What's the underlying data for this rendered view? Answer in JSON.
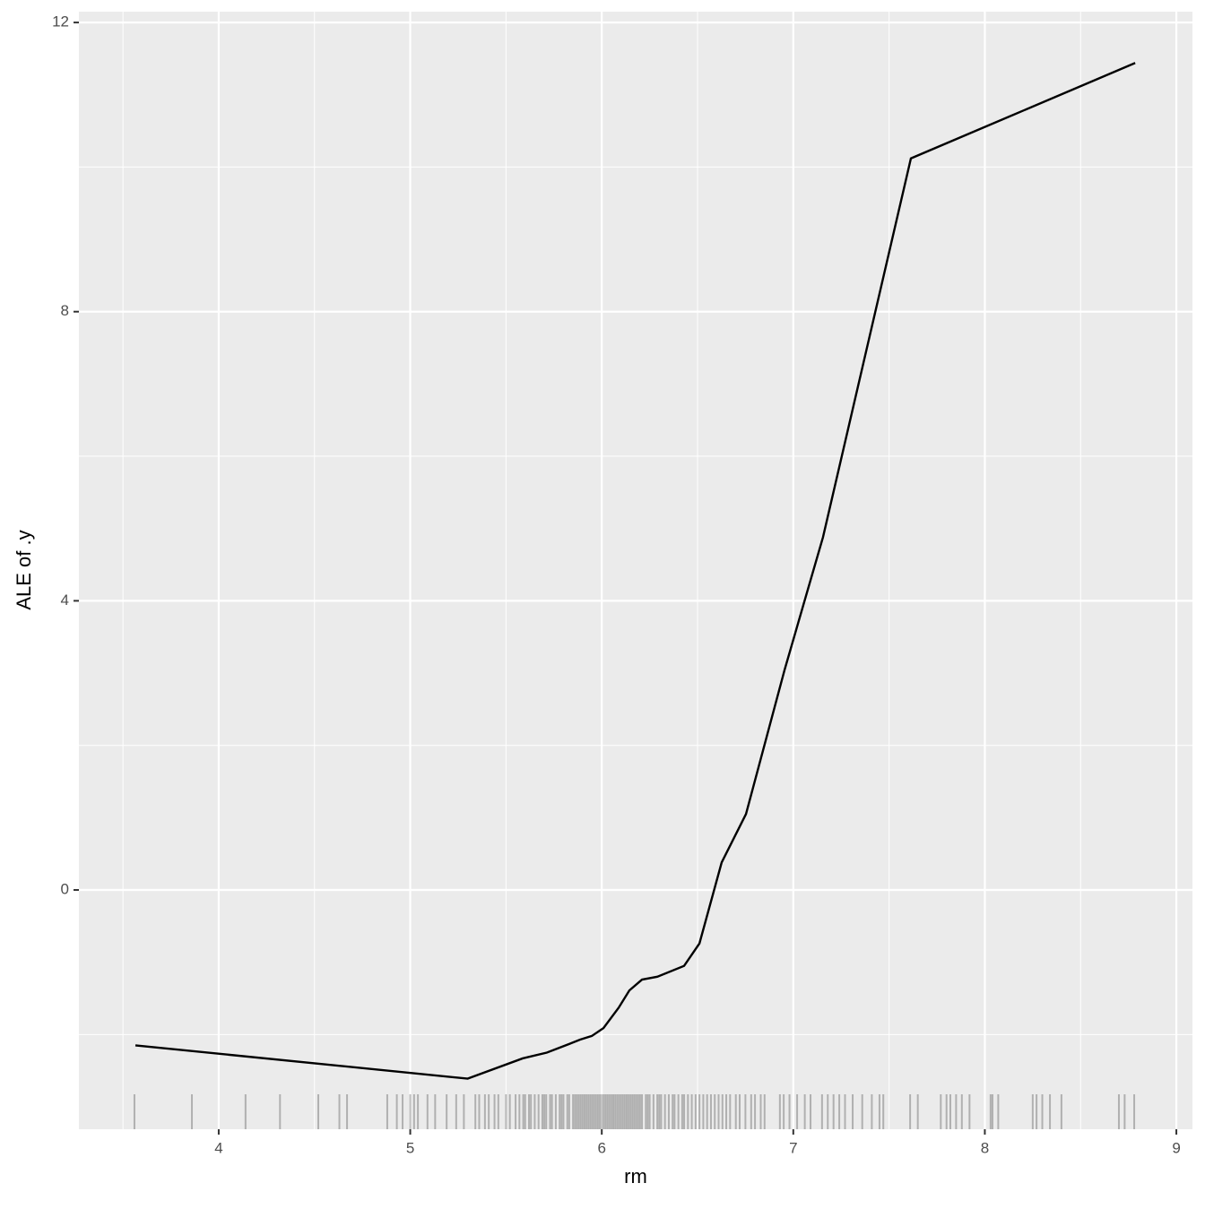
{
  "chart_data": {
    "type": "line",
    "x_label": "rm",
    "y_label": "ALE of .y",
    "x": [
      3.565,
      5.3,
      5.587,
      5.713,
      5.84,
      5.887,
      5.948,
      6.009,
      6.088,
      6.144,
      6.21,
      6.29,
      6.43,
      6.51,
      6.626,
      6.753,
      6.954,
      7.155,
      7.614,
      8.785
    ],
    "series": [
      {
        "color": "#000000",
        "values": [
          -2.15,
          -2.61,
          -2.33,
          -2.25,
          -2.12,
          -2.07,
          -2.02,
          -1.91,
          -1.63,
          -1.39,
          -1.24,
          -1.2,
          -1.05,
          -0.74,
          0.38,
          1.05,
          3.04,
          4.88,
          10.12,
          11.44
        ]
      }
    ],
    "rug": [
      3.56,
      3.86,
      4.14,
      4.32,
      4.52,
      4.63,
      4.67,
      4.88,
      4.93,
      4.96,
      5.0,
      5.02,
      5.04,
      5.09,
      5.13,
      5.19,
      5.24,
      5.28,
      5.34,
      5.36,
      5.39,
      5.41,
      5.44,
      5.46,
      5.5,
      5.52,
      5.55,
      5.57,
      5.59,
      5.6,
      5.62,
      5.63,
      5.65,
      5.67,
      5.69,
      5.7,
      5.71,
      5.73,
      5.74,
      5.76,
      5.78,
      5.79,
      5.8,
      5.82,
      5.83,
      5.85,
      5.86,
      5.87,
      5.88,
      5.89,
      5.9,
      5.91,
      5.92,
      5.93,
      5.94,
      5.95,
      5.96,
      5.97,
      5.98,
      5.99,
      6.0,
      6.01,
      6.02,
      6.03,
      6.04,
      6.05,
      6.06,
      6.07,
      6.08,
      6.09,
      6.1,
      6.11,
      6.12,
      6.13,
      6.14,
      6.15,
      6.16,
      6.17,
      6.18,
      6.19,
      6.2,
      6.21,
      6.23,
      6.24,
      6.25,
      6.27,
      6.29,
      6.3,
      6.31,
      6.33,
      6.35,
      6.37,
      6.38,
      6.4,
      6.42,
      6.43,
      6.45,
      6.47,
      6.49,
      6.51,
      6.53,
      6.55,
      6.57,
      6.59,
      6.61,
      6.63,
      6.65,
      6.67,
      6.7,
      6.72,
      6.75,
      6.78,
      6.8,
      6.83,
      6.85,
      6.93,
      6.95,
      6.98,
      7.02,
      7.06,
      7.09,
      7.15,
      7.18,
      7.21,
      7.24,
      7.27,
      7.31,
      7.36,
      7.41,
      7.45,
      7.47,
      7.61,
      7.65,
      7.77,
      7.8,
      7.82,
      7.85,
      7.88,
      7.92,
      8.03,
      8.04,
      8.07,
      8.25,
      8.27,
      8.3,
      8.34,
      8.4,
      8.7,
      8.73,
      8.78
    ],
    "rug_color": "#000000",
    "xlim": [
      3.27,
      9.084
    ],
    "ylim": [
      -3.31,
      12.15
    ],
    "xticks": [
      4,
      5,
      6,
      7,
      8,
      9
    ],
    "yticks": [
      0,
      4,
      8,
      12
    ],
    "grid": true
  }
}
